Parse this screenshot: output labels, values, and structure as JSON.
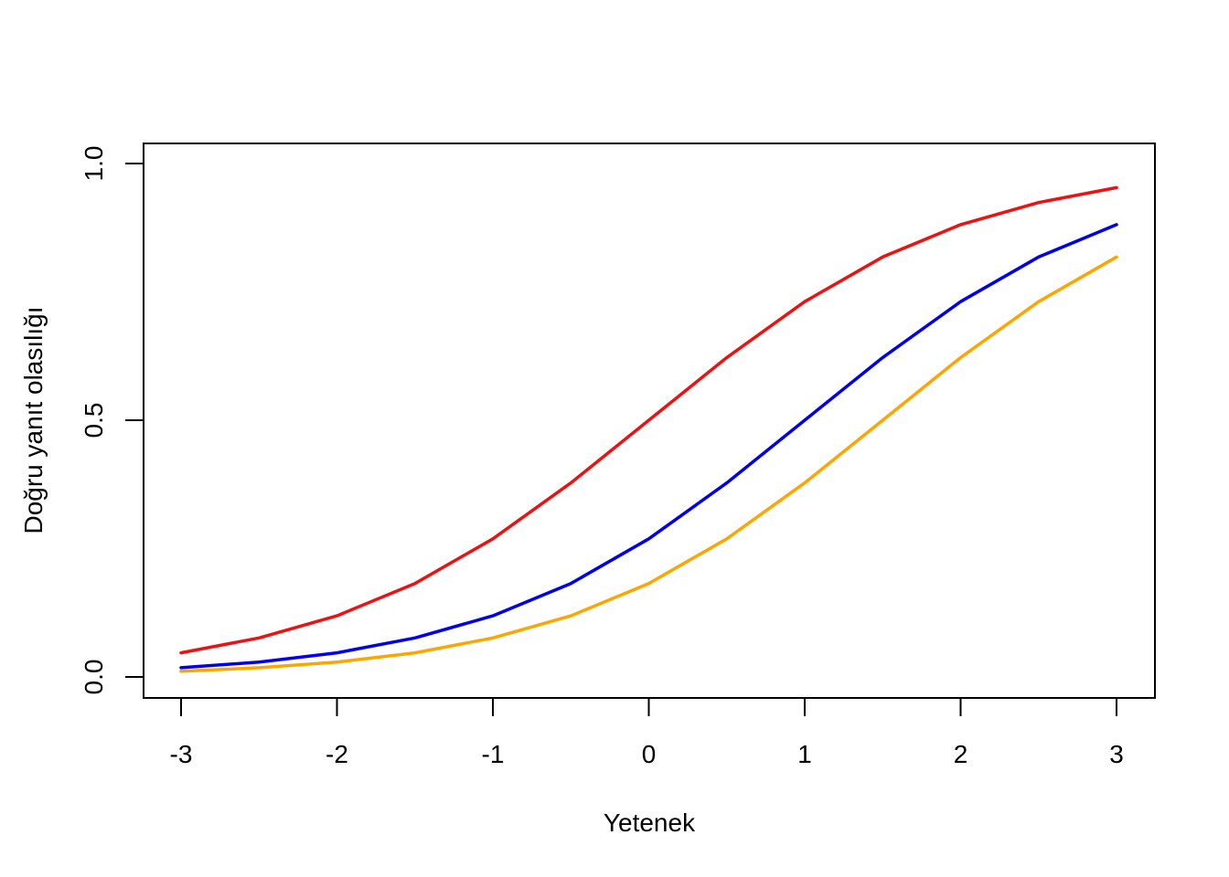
{
  "chart_data": {
    "type": "line",
    "title": "",
    "xlabel": "Yetenek",
    "ylabel": "Doğru yanıt olasılığı",
    "xlim": [
      -3,
      3
    ],
    "ylim": [
      0,
      1
    ],
    "xticks": [
      "-3",
      "-2",
      "-1",
      "0",
      "1",
      "2",
      "3"
    ],
    "yticks": [
      "0.0",
      "0.5",
      "1.0"
    ],
    "grid": false,
    "legend": "none",
    "x": [
      -3,
      -2.5,
      -2,
      -1.5,
      -1,
      -0.5,
      0,
      0.5,
      1,
      1.5,
      2,
      2.5,
      3
    ],
    "series": [
      {
        "color": "#ee1111",
        "values": [
          0.047,
          0.076,
          0.119,
          0.182,
          0.269,
          0.378,
          0.5,
          0.622,
          0.731,
          0.818,
          0.881,
          0.924,
          0.953
        ]
      },
      {
        "color": "#0000ee",
        "values": [
          0.018,
          0.029,
          0.047,
          0.076,
          0.119,
          0.182,
          0.269,
          0.378,
          0.5,
          0.622,
          0.731,
          0.818,
          0.881
        ]
      },
      {
        "color": "#ffa500",
        "values": [
          0.011,
          0.018,
          0.029,
          0.047,
          0.076,
          0.119,
          0.182,
          0.269,
          0.378,
          0.5,
          0.622,
          0.731,
          0.818
        ]
      }
    ]
  }
}
